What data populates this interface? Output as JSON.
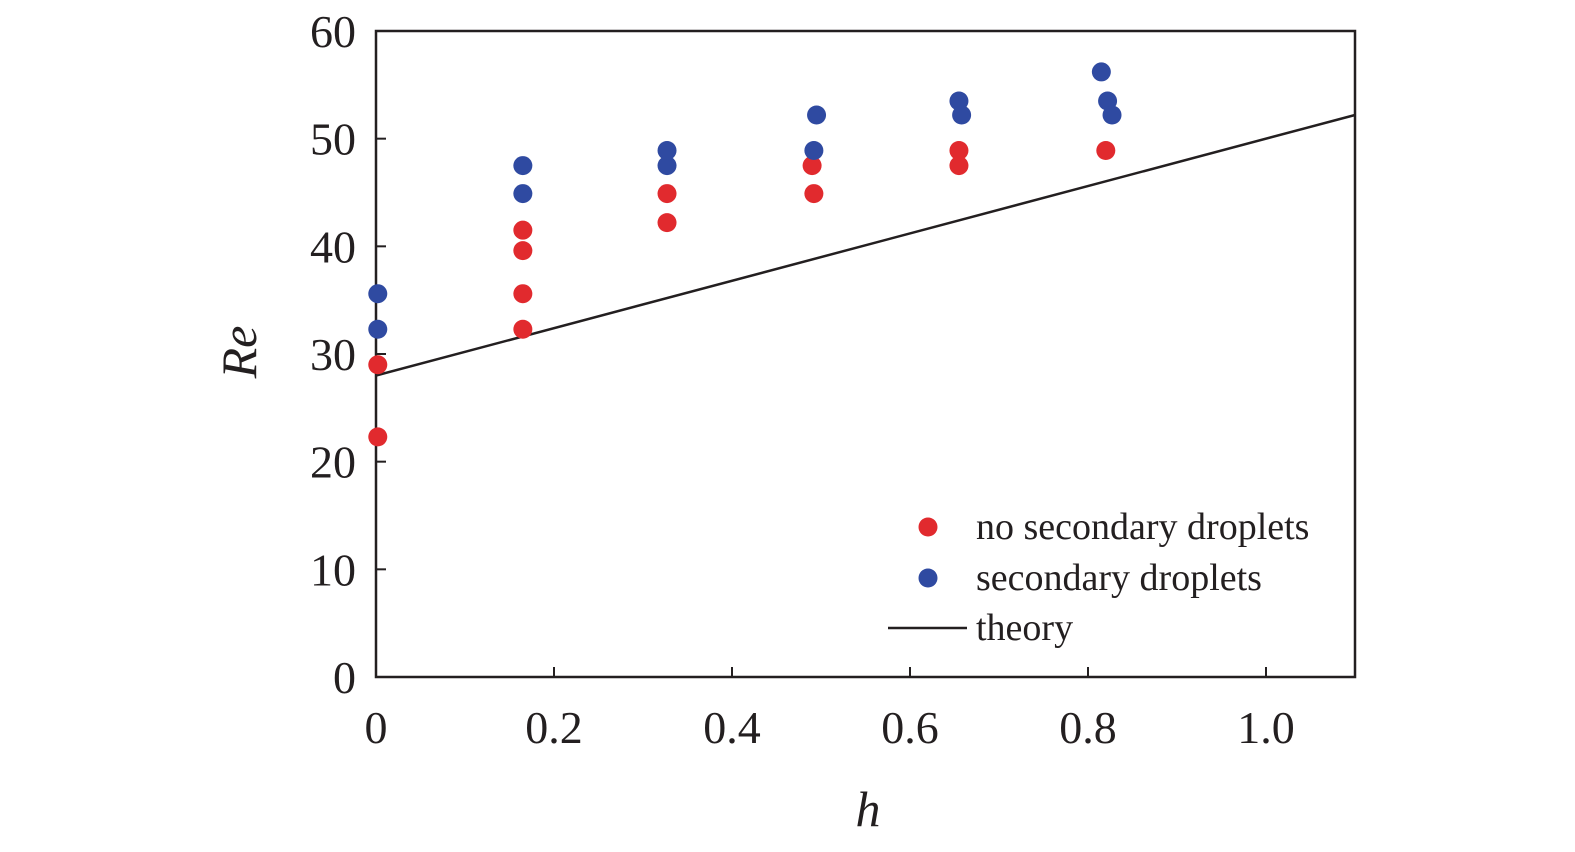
{
  "chart_data": {
    "type": "scatter",
    "title": "",
    "xlabel": "h",
    "ylabel": "Re",
    "xlim": [
      0,
      1.1
    ],
    "ylim": [
      0,
      60
    ],
    "xticks": [
      0,
      0.2,
      0.4,
      0.6,
      0.8,
      1.0
    ],
    "xtick_labels": [
      "0",
      "0.2",
      "0.4",
      "0.6",
      "0.8",
      "1.0"
    ],
    "yticks": [
      0,
      10,
      20,
      30,
      40,
      50,
      60
    ],
    "ytick_labels": [
      "0",
      "10",
      "20",
      "30",
      "40",
      "50",
      "60"
    ],
    "grid": false,
    "legend_position": "bottom-right",
    "series": [
      {
        "name": "no secondary droplets",
        "kind": "points",
        "color": "#e12a2e",
        "x": [
          0.002,
          0.002,
          0.165,
          0.165,
          0.165,
          0.165,
          0.327,
          0.327,
          0.492,
          0.49,
          0.655,
          0.655,
          0.82
        ],
        "y": [
          22.3,
          29.0,
          32.3,
          35.6,
          39.6,
          41.5,
          42.2,
          44.9,
          44.9,
          47.5,
          47.5,
          48.9,
          48.9
        ]
      },
      {
        "name": "secondary droplets",
        "kind": "points",
        "color": "#2f4aa1",
        "x": [
          0.002,
          0.002,
          0.165,
          0.165,
          0.327,
          0.327,
          0.492,
          0.495,
          0.655,
          0.658,
          0.815,
          0.822,
          0.827
        ],
        "y": [
          32.3,
          35.6,
          44.9,
          47.5,
          47.5,
          48.9,
          48.9,
          52.2,
          53.5,
          52.2,
          56.2,
          53.5,
          52.2
        ]
      },
      {
        "name": "theory",
        "kind": "line",
        "color": "#231f20",
        "x": [
          0,
          1.1
        ],
        "y": [
          28.0,
          52.2
        ]
      }
    ]
  }
}
